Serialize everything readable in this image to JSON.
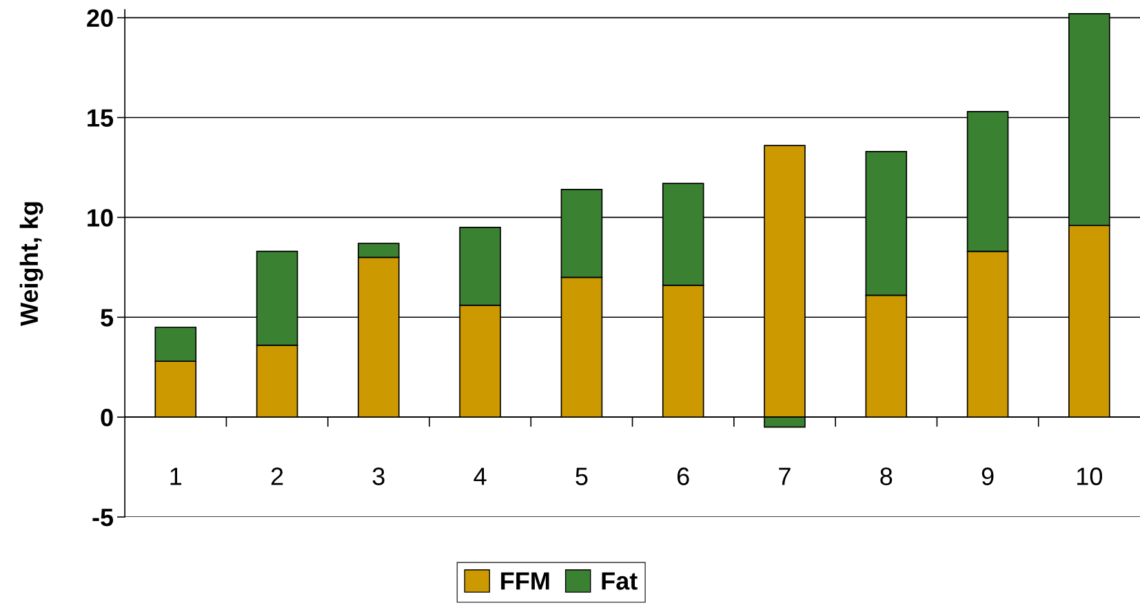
{
  "chart_data": {
    "type": "bar",
    "ylabel": "Weight, kg",
    "categories": [
      "1",
      "2",
      "3",
      "4",
      "5",
      "6",
      "7",
      "8",
      "9",
      "10"
    ],
    "series": [
      {
        "name": "FFM",
        "color": "#cc9900",
        "values": [
          2.8,
          3.6,
          8.0,
          5.6,
          7.0,
          6.6,
          13.6,
          6.1,
          8.3,
          9.6
        ]
      },
      {
        "name": "Fat",
        "color": "#3a8232",
        "values": [
          1.7,
          4.7,
          0.7,
          3.9,
          4.4,
          5.1,
          -0.5,
          7.2,
          7.0,
          10.6
        ]
      }
    ],
    "stacked": true,
    "ylim": [
      -5,
      20.4
    ],
    "yticks": [
      -5,
      0,
      5,
      10,
      15,
      20
    ],
    "grid": "y",
    "legend": "bottom"
  }
}
